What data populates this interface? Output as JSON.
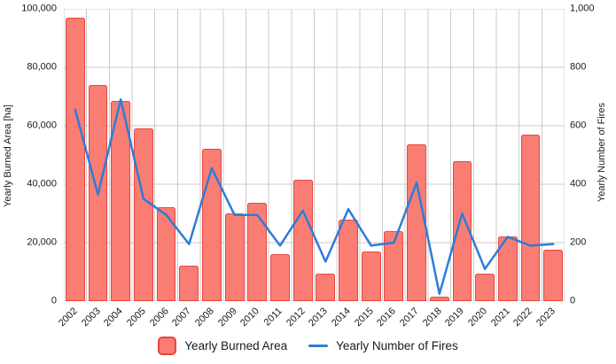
{
  "chart_data": {
    "type": "bar",
    "subtype": "bar+line dual axis",
    "categories": [
      "2002",
      "2003",
      "2004",
      "2005",
      "2006",
      "2007",
      "2008",
      "2009",
      "2010",
      "2011",
      "2012",
      "2013",
      "2014",
      "2015",
      "2016",
      "2017",
      "2018",
      "2019",
      "2020",
      "2021",
      "2022",
      "2023"
    ],
    "series": [
      {
        "name": "Yearly Burned Area",
        "type": "bar",
        "axis": "left",
        "values": [
          97000,
          74000,
          68500,
          59000,
          32000,
          12000,
          52000,
          30000,
          33500,
          16000,
          41500,
          9500,
          28000,
          17000,
          24000,
          53500,
          1500,
          48000,
          9500,
          22000,
          57000,
          17500
        ]
      },
      {
        "name": "Yearly Number of Fires",
        "type": "line",
        "axis": "right",
        "values": [
          655,
          365,
          690,
          350,
          295,
          195,
          455,
          295,
          295,
          190,
          310,
          135,
          315,
          190,
          200,
          405,
          25,
          300,
          110,
          220,
          190,
          195
        ]
      }
    ],
    "left_axis": {
      "title": "Yearly Burned Area [ha]",
      "min": 0,
      "max": 100000,
      "ticks": [
        "100,000",
        "80,000",
        "60,000",
        "40,000",
        "20,000",
        "0"
      ]
    },
    "right_axis": {
      "title": "Yearly Number of Fires",
      "min": 0,
      "max": 1000,
      "ticks": [
        "1,000",
        "800",
        "600",
        "400",
        "200",
        "0"
      ]
    },
    "grid": true,
    "legend_position": "bottom",
    "colors": {
      "bar_fill": "#FA7D74",
      "bar_border": "#E8463C",
      "line": "#2E7CD8",
      "grid": "#CBCBCB",
      "text": "#1A1A1A",
      "background": "#FFFFFF"
    }
  },
  "legend": {
    "items": [
      {
        "label": "Yearly Burned Area",
        "swatch": "bar"
      },
      {
        "label": "Yearly Number of Fires",
        "swatch": "line"
      }
    ]
  }
}
